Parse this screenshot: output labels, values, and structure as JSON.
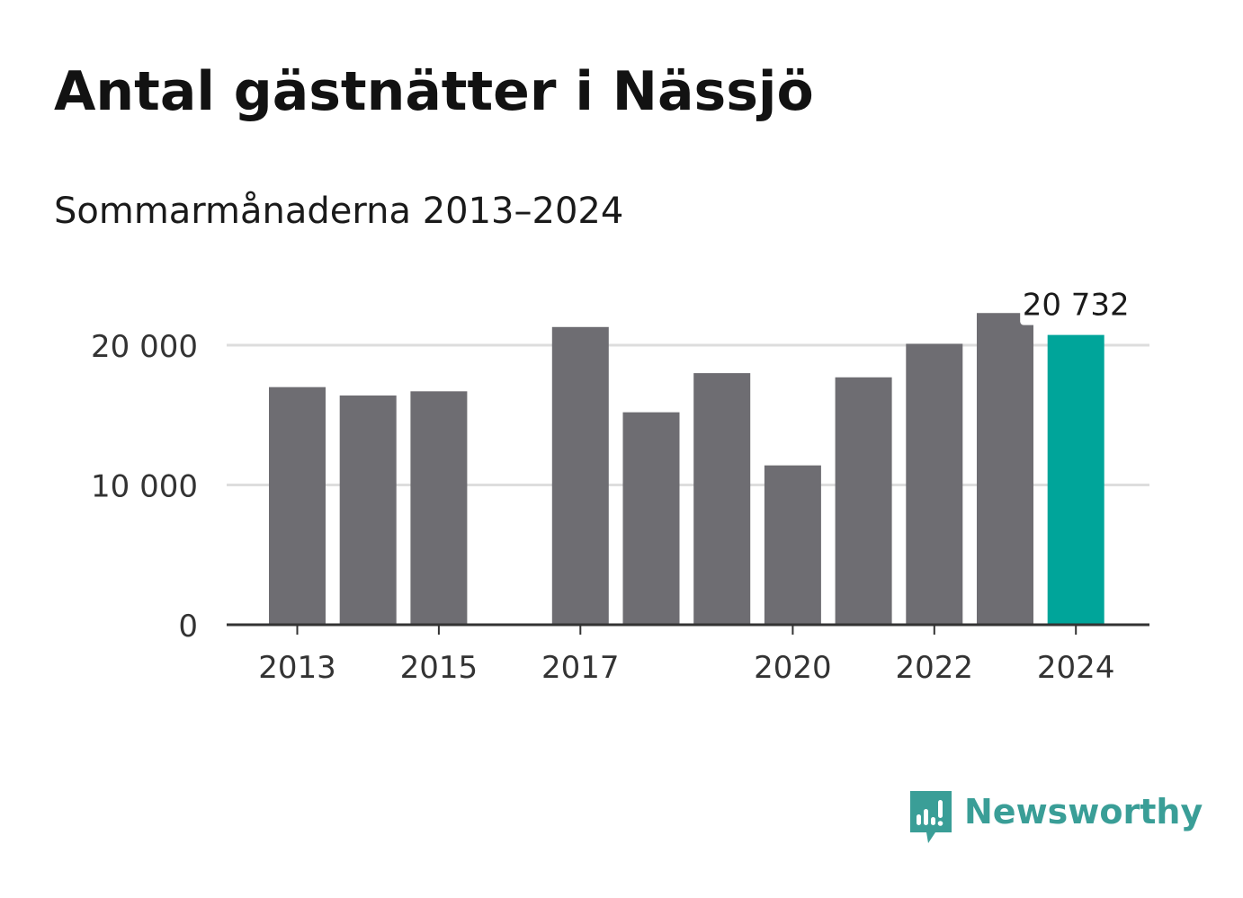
{
  "title": "Antal gästnätter i Nässjö",
  "subtitle": "Sommarmånaderna 2013–2024",
  "chart_data": {
    "type": "bar",
    "categories": [
      "2013",
      "2014",
      "2015",
      "2016",
      "2017",
      "2018",
      "2019",
      "2020",
      "2021",
      "2022",
      "2023",
      "2024"
    ],
    "values": [
      17000,
      16400,
      16700,
      null,
      21300,
      15200,
      18000,
      11400,
      17700,
      20100,
      22300,
      20732
    ],
    "x_tick_labels": [
      "2013",
      "2015",
      "2017",
      "2020",
      "2022",
      "2024"
    ],
    "y_ticks": [
      0,
      10000,
      20000
    ],
    "y_tick_labels": [
      "0",
      "10 000",
      "20 000"
    ],
    "ylim": [
      0,
      22300
    ],
    "grid": true,
    "highlight": {
      "category": "2024",
      "label": "20 732"
    },
    "colors": {
      "bar": "#6e6d72",
      "highlight": "#00a59a",
      "grid": "#dddddd",
      "axis": "#333333"
    }
  },
  "logo": {
    "text": "Newsworthy",
    "icon": "bar-chart-speech-bubble-icon",
    "color": "#3a9e97"
  }
}
